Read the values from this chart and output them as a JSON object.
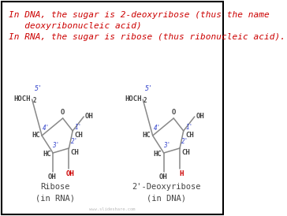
{
  "bg_color": "#ffffff",
  "border_color": "#000000",
  "line1": "In DNA, the sugar is 2-deoxyribose (thus the name",
  "line2": "   deoxyribonucleic acid)",
  "line3": "In RNA, the sugar is ribose (thus ribonucleic acid).",
  "watermark": "www.slideshare.com",
  "label_ribose": "Ribose\n(in RNA)",
  "label_deoxyribose": "2'-Deoxyribose\n(in DNA)",
  "red_color": "#cc0000",
  "blue_color": "#3344cc",
  "dark_color": "#444444",
  "ring_color": "#888888"
}
